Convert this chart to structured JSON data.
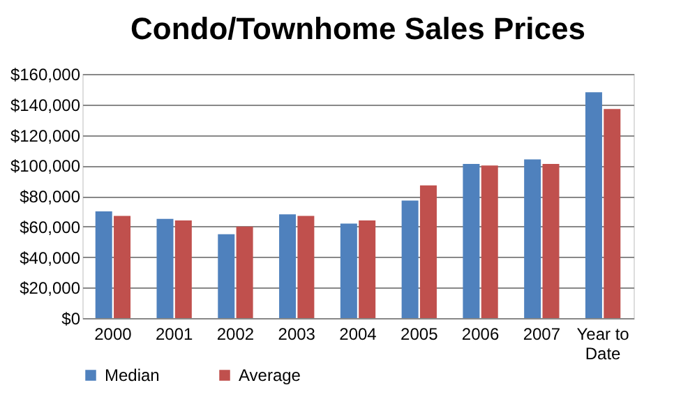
{
  "chart_data": {
    "type": "bar",
    "title": "Condo/Townhome Sales Prices",
    "categories": [
      "2000",
      "2001",
      "2002",
      "2003",
      "2004",
      "2005",
      "2006",
      "2007",
      "Year to Date"
    ],
    "series": [
      {
        "name": "Median",
        "color": "#4f81bd",
        "values": [
          70000,
          65000,
          55000,
          68000,
          62000,
          77000,
          101000,
          104000,
          148000
        ]
      },
      {
        "name": "Average",
        "color": "#c0504d",
        "values": [
          67000,
          64000,
          60000,
          67000,
          64000,
          87000,
          100000,
          101000,
          137000
        ]
      }
    ],
    "ylim": [
      0,
      160000
    ],
    "yticks": [
      {
        "value": 0,
        "label": "$0"
      },
      {
        "value": 20000,
        "label": "$20,000"
      },
      {
        "value": 40000,
        "label": "$40,000"
      },
      {
        "value": 60000,
        "label": "$60,000"
      },
      {
        "value": 80000,
        "label": "$80,000"
      },
      {
        "value": 100000,
        "label": "$100,000"
      },
      {
        "value": 120000,
        "label": "$120,000"
      },
      {
        "value": 140000,
        "label": "$140,000"
      },
      {
        "value": 160000,
        "label": "$160,000"
      }
    ],
    "grid": "y",
    "legend": "bottom"
  }
}
